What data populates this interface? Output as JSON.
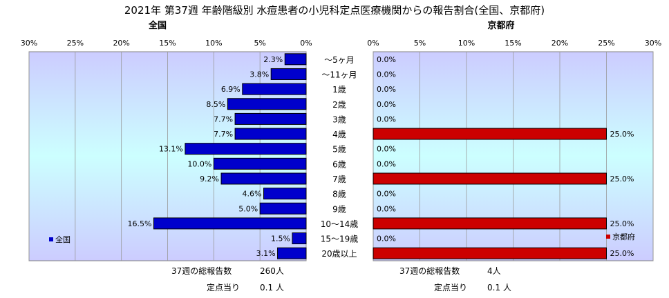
{
  "title": "2021年 第37週 年齢階級別 水痘患者の小児科定点医療機関からの報告割合(全国、京都府)",
  "colors": {
    "national_bar": "#0000CC",
    "kyoto_bar": "#CC0000",
    "bar_border": "#000000"
  },
  "ages": [
    "～5ヶ月",
    "～11ヶ月",
    "1歳",
    "2歳",
    "3歳",
    "4歳",
    "5歳",
    "6歳",
    "7歳",
    "8歳",
    "9歳",
    "10～14歳",
    "15～19歳",
    "20歳以上"
  ],
  "chart_data": [
    {
      "type": "bar",
      "orientation": "horizontal",
      "direction": "right-to-left",
      "title": "全国",
      "categories": [
        "～5ヶ月",
        "～11ヶ月",
        "1歳",
        "2歳",
        "3歳",
        "4歳",
        "5歳",
        "6歳",
        "7歳",
        "8歳",
        "9歳",
        "10～14歳",
        "15～19歳",
        "20歳以上"
      ],
      "series": [
        {
          "name": "全国",
          "values": [
            2.3,
            3.8,
            6.9,
            8.5,
            7.7,
            7.7,
            13.1,
            10.0,
            9.2,
            4.6,
            5.0,
            16.5,
            1.5,
            3.1
          ]
        }
      ],
      "data_labels": [
        "2.3%",
        "3.8%",
        "6.9%",
        "8.5%",
        "7.7%",
        "7.7%",
        "13.1%",
        "10.0%",
        "9.2%",
        "4.6%",
        "5.0%",
        "16.5%",
        "1.5%",
        "3.1%"
      ],
      "xlim": [
        0,
        30
      ],
      "tick_labels": [
        "30%",
        "25%",
        "20%",
        "15%",
        "10%",
        "5%",
        "0%"
      ],
      "legend": "全国",
      "legend_position": "left",
      "grid": true
    },
    {
      "type": "bar",
      "orientation": "horizontal",
      "direction": "left-to-right",
      "title": "京都府",
      "categories": [
        "～5ヶ月",
        "～11ヶ月",
        "1歳",
        "2歳",
        "3歳",
        "4歳",
        "5歳",
        "6歳",
        "7歳",
        "8歳",
        "9歳",
        "10～14歳",
        "15～19歳",
        "20歳以上"
      ],
      "series": [
        {
          "name": "京都府",
          "values": [
            0,
            0,
            0,
            0,
            0,
            25.0,
            0,
            0,
            25.0,
            0,
            0,
            25.0,
            0,
            25.0
          ]
        }
      ],
      "data_labels": [
        "0.0%",
        "0.0%",
        "0.0%",
        "0.0%",
        "0.0%",
        "25.0%",
        "0.0%",
        "0.0%",
        "25.0%",
        "0.0%",
        "0.0%",
        "25.0%",
        "0.0%",
        "25.0%"
      ],
      "xlim": [
        0,
        30
      ],
      "tick_labels": [
        "0%",
        "5%",
        "10%",
        "15%",
        "20%",
        "25%",
        "30%"
      ],
      "legend": "京都府",
      "legend_position": "right",
      "grid": true
    }
  ],
  "footer": {
    "national": {
      "total_label": "37週の総報告数",
      "total_value": "260人",
      "per_label": "定点当り",
      "per_value": "0.1 人"
    },
    "kyoto": {
      "total_label": "37週の総報告数",
      "total_value": "4人",
      "per_label": "定点当り",
      "per_value": "0.1 人"
    }
  }
}
